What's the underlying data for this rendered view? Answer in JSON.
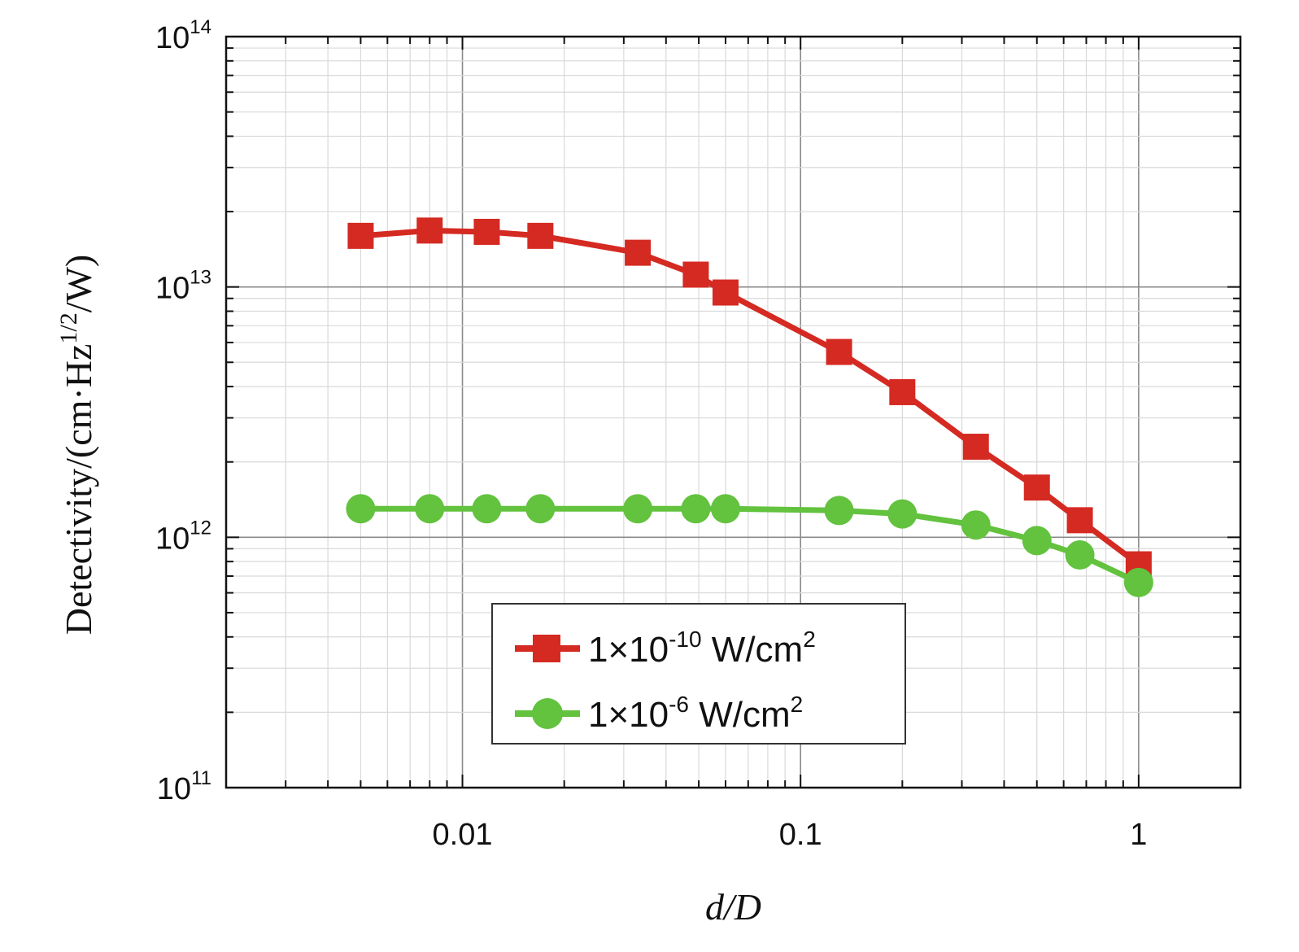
{
  "chart_data": {
    "type": "line",
    "xlabel": "d/D",
    "ylabel": "Detectivity/(cm·Hz^{1/2}/W)",
    "x_scale": "log",
    "y_scale": "log",
    "xlim": [
      0.002,
      2
    ],
    "ylim": [
      100000000000.0,
      100000000000000.0
    ],
    "grid": true,
    "legend_position": "bottom-center",
    "x_ticks": [
      {
        "label": "0.01"
      },
      {
        "label": "0.1"
      },
      {
        "label": "1"
      }
    ],
    "y_ticks": [
      {
        "base": "10",
        "exp": "11"
      },
      {
        "base": "10",
        "exp": "12"
      },
      {
        "base": "10",
        "exp": "13"
      },
      {
        "base": "10",
        "exp": "14"
      }
    ],
    "series": [
      {
        "name_main": "1×10",
        "name_exp": "-10",
        "name_unit": " W/cm",
        "name_unit_exp": "2",
        "color": "#d42a22",
        "marker": "square",
        "x": [
          0.005,
          0.008,
          0.0118,
          0.017,
          0.033,
          0.049,
          0.06,
          0.13,
          0.2,
          0.33,
          0.5,
          0.67,
          1
        ],
        "y": [
          16000000000000.0,
          16800000000000.0,
          16600000000000.0,
          16000000000000.0,
          13700000000000.0,
          11200000000000.0,
          9500000000000.0,
          5500000000000.0,
          3800000000000.0,
          2300000000000.0,
          1580000000000.0,
          1170000000000.0,
          780000000000.0
        ]
      },
      {
        "name_main": "1×10",
        "name_exp": "-6",
        "name_unit": " W/cm",
        "name_unit_exp": "2",
        "color": "#63c23e",
        "marker": "circle",
        "x": [
          0.005,
          0.008,
          0.0118,
          0.017,
          0.033,
          0.049,
          0.06,
          0.13,
          0.2,
          0.33,
          0.5,
          0.67,
          1
        ],
        "y": [
          1300000000000.0,
          1300000000000.0,
          1300000000000.0,
          1300000000000.0,
          1300000000000.0,
          1300000000000.0,
          1300000000000.0,
          1280000000000.0,
          1240000000000.0,
          1120000000000.0,
          970000000000.0,
          850000000000.0,
          660000000000.0
        ]
      }
    ]
  }
}
